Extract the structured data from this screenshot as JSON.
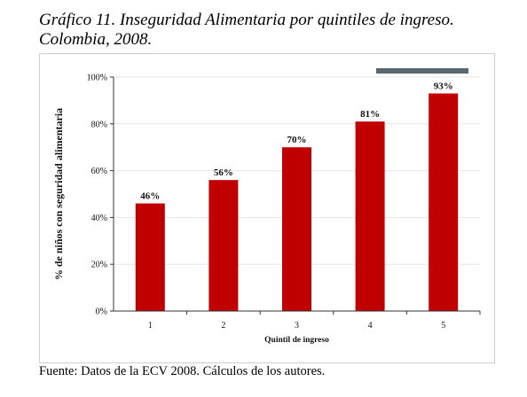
{
  "title": "Gráfico 11. Inseguridad Alimentaria por quintiles de ingreso. Colombia, 2008.",
  "source": "Fuente: Datos de la ECV 2008. Cálculos de los autores.",
  "chart_data": {
    "type": "bar",
    "categories": [
      "1",
      "2",
      "3",
      "4",
      "5"
    ],
    "values": [
      46,
      56,
      70,
      81,
      93
    ],
    "data_labels": [
      "46%",
      "56%",
      "70%",
      "81%",
      "93%"
    ],
    "yticks": [
      0,
      20,
      40,
      60,
      80,
      100
    ],
    "ytick_labels": [
      "0%",
      "20%",
      "40%",
      "60%",
      "80%",
      "100%"
    ],
    "ylim": [
      0,
      100
    ],
    "xlabel": "Quintil de ingreso",
    "ylabel": "% de niños con seguridad alimentaria",
    "grid": true,
    "bar_color": "#c00000",
    "legend_bar_color": "#5b6770"
  }
}
